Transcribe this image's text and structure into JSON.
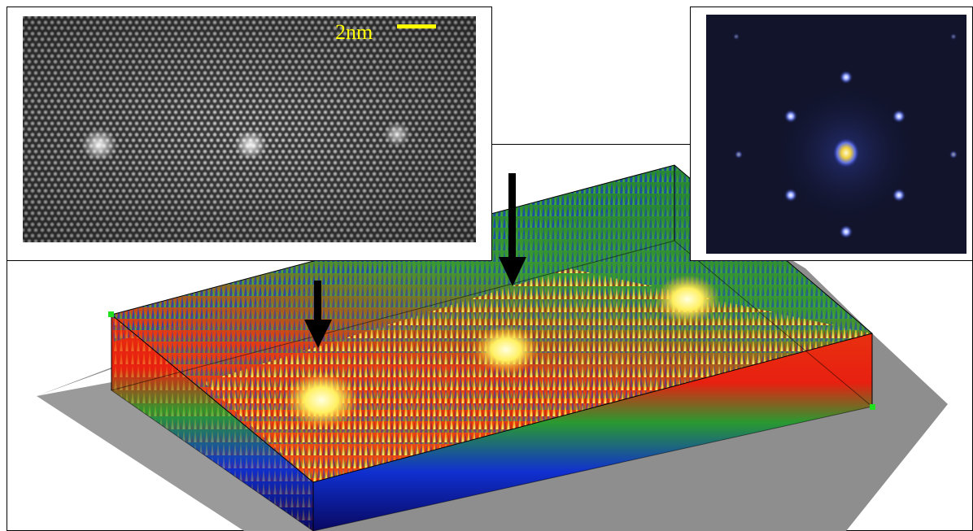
{
  "scale_bar": {
    "label": "2nm"
  }
}
